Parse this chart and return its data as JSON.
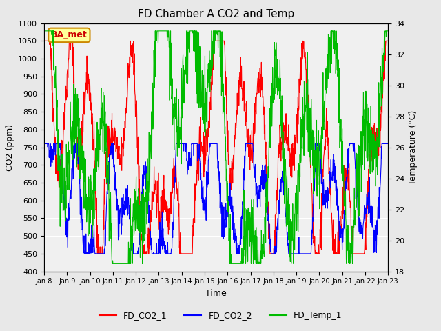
{
  "title": "FD Chamber A CO2 and Temp",
  "xlabel": "Time",
  "ylabel_left": "CO2 (ppm)",
  "ylabel_right": "Temperature (°C)",
  "ylim_left": [
    400,
    1100
  ],
  "ylim_right": [
    18,
    34
  ],
  "yticks_left": [
    400,
    450,
    500,
    550,
    600,
    650,
    700,
    750,
    800,
    850,
    900,
    950,
    1000,
    1050,
    1100
  ],
  "yticks_right": [
    18,
    20,
    22,
    24,
    26,
    28,
    30,
    32,
    34
  ],
  "xtick_labels": [
    "Jan 8",
    "Jan 9",
    "Jan 10",
    "Jan 11",
    "Jan 12",
    "Jan 13",
    "Jan 14",
    "Jan 15",
    "Jan 16",
    "Jan 17",
    "Jan 18",
    "Jan 19",
    "Jan 20",
    "Jan 21",
    "Jan 22",
    "Jan 23"
  ],
  "colors": {
    "FD_CO2_1": "#ff0000",
    "FD_CO2_2": "#0000ff",
    "FD_Temp_1": "#00bb00"
  },
  "annotation_text": "BA_met",
  "annotation_bg": "#ffff99",
  "annotation_border": "#cc8800",
  "background_color": "#e8e8e8",
  "plot_bg": "#f0f0f0",
  "grid_color": "#ffffff",
  "num_days": 15,
  "points_per_day": 96,
  "seed": 42
}
